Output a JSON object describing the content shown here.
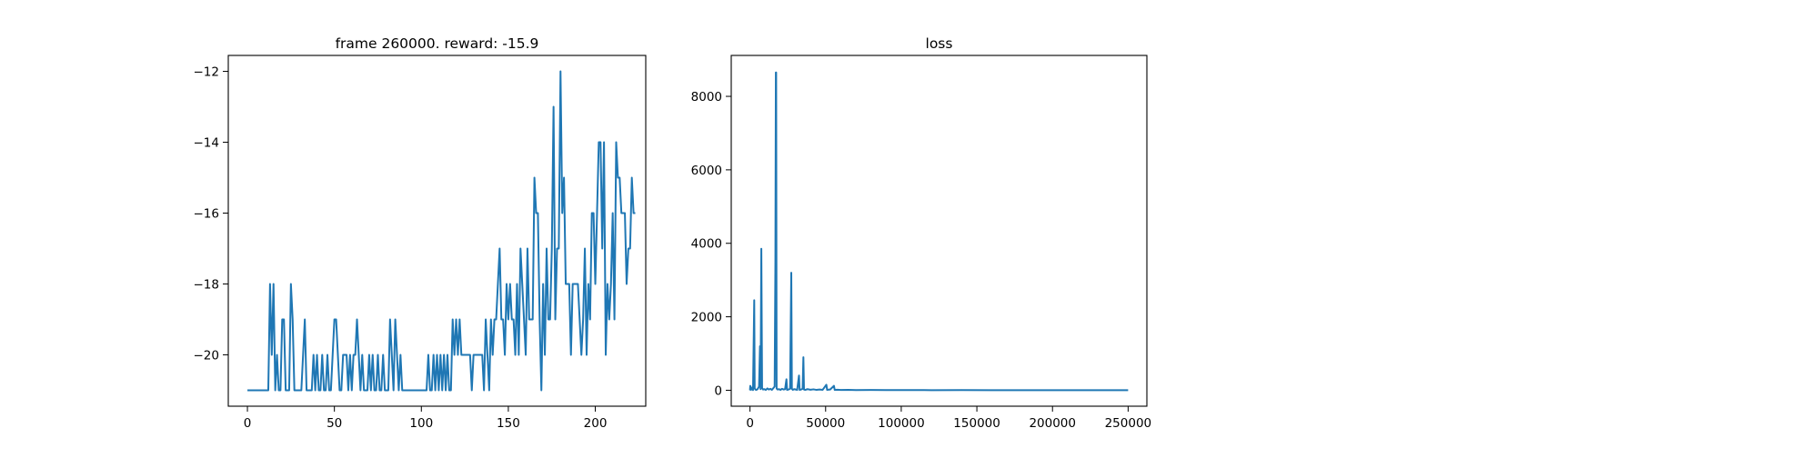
{
  "chart_data": [
    {
      "type": "line",
      "title": "frame 260000. reward: -15.9",
      "xlabel": "",
      "ylabel": "",
      "xlim": [
        -11,
        229
      ],
      "ylim": [
        -21.45,
        -11.55
      ],
      "xticks": [
        0,
        50,
        100,
        150,
        200
      ],
      "yticks": [
        -20,
        -18,
        -16,
        -14,
        -12
      ],
      "xtick_labels": [
        "0",
        "50",
        "100",
        "150",
        "200"
      ],
      "ytick_labels": [
        "−20",
        "−18",
        "−16",
        "−14",
        "−12"
      ],
      "grid": false,
      "color": "#1f77b4",
      "series": [
        {
          "x_start": 0,
          "values": [
            -21,
            -21,
            -21,
            -21,
            -21,
            -21,
            -21,
            -21,
            -21,
            -21,
            -21,
            -21,
            -21,
            -18,
            -20,
            -18,
            -21,
            -20,
            -21,
            -21,
            -19,
            -19,
            -21,
            -21,
            -21,
            -18,
            -19,
            -21,
            -21,
            -21,
            -21,
            -21,
            -20,
            -19,
            -21,
            -21,
            -21,
            -21,
            -20,
            -21,
            -20,
            -21,
            -21,
            -20,
            -21,
            -21,
            -20,
            -21,
            -21,
            -20,
            -19,
            -19,
            -20,
            -21,
            -21,
            -20,
            -20,
            -20,
            -21,
            -20,
            -21,
            -20,
            -20,
            -19,
            -20,
            -21,
            -20,
            -21,
            -21,
            -21,
            -20,
            -21,
            -20,
            -21,
            -21,
            -20,
            -21,
            -21,
            -20,
            -21,
            -21,
            -21,
            -19,
            -20,
            -21,
            -19,
            -20,
            -21,
            -20,
            -21,
            -21,
            -21,
            -21,
            -21,
            -21,
            -21,
            -21,
            -21,
            -21,
            -21,
            -21,
            -21,
            -21,
            -21,
            -20,
            -21,
            -21,
            -20,
            -21,
            -20,
            -21,
            -20,
            -21,
            -20,
            -21,
            -20,
            -21,
            -21,
            -19,
            -20,
            -19,
            -20,
            -19,
            -20,
            -20,
            -20,
            -20,
            -20,
            -20,
            -21,
            -20,
            -20,
            -20,
            -20,
            -20,
            -20,
            -21,
            -19,
            -20,
            -21,
            -19,
            -20,
            -19,
            -19,
            -18,
            -17,
            -19,
            -19,
            -20,
            -18,
            -19,
            -18,
            -19,
            -19,
            -20,
            -18,
            -20,
            -17,
            -18,
            -19,
            -20,
            -17,
            -19,
            -19,
            -19,
            -15,
            -16,
            -16,
            -19,
            -21,
            -18,
            -20,
            -17,
            -19,
            -19,
            -17,
            -13,
            -19,
            -17,
            -17,
            -12,
            -16,
            -15,
            -18,
            -18,
            -18,
            -20,
            -18,
            -18,
            -18,
            -18,
            -19,
            -20,
            -19,
            -17,
            -20,
            -18,
            -19,
            -16,
            -16,
            -18,
            -16,
            -14,
            -14,
            -17,
            -14,
            -20,
            -18,
            -19,
            -18,
            -16,
            -19,
            -14,
            -15,
            -15,
            -16,
            -16,
            -16,
            -18,
            -17,
            -17,
            -15,
            -16,
            -16
          ]
        }
      ]
    },
    {
      "type": "line",
      "title": "loss",
      "xlabel": "",
      "ylabel": "",
      "xlim": [
        -12400,
        262400
      ],
      "ylim": [
        -434,
        9114
      ],
      "xticks": [
        0,
        50000,
        100000,
        150000,
        200000,
        250000
      ],
      "yticks": [
        0,
        2000,
        4000,
        6000,
        8000
      ],
      "xtick_labels": [
        "0",
        "50000",
        "100000",
        "150000",
        "200000",
        "250000"
      ],
      "ytick_labels": [
        "0",
        "2000",
        "4000",
        "6000",
        "8000"
      ],
      "grid": false,
      "color": "#1f77b4",
      "series": [
        {
          "points": [
            [
              0,
              0
            ],
            [
              200,
              120
            ],
            [
              400,
              10
            ],
            [
              800,
              80
            ],
            [
              1200,
              20
            ],
            [
              1700,
              40
            ],
            [
              2000,
              5
            ],
            [
              2500,
              1500
            ],
            [
              2800,
              2450
            ],
            [
              3100,
              50
            ],
            [
              3600,
              20
            ],
            [
              4200,
              10
            ],
            [
              5000,
              30
            ],
            [
              6000,
              100
            ],
            [
              6600,
              1200
            ],
            [
              7000,
              30
            ],
            [
              7500,
              3850
            ],
            [
              8000,
              60
            ],
            [
              8600,
              20
            ],
            [
              9500,
              30
            ],
            [
              10500,
              10
            ],
            [
              11500,
              50
            ],
            [
              12500,
              20
            ],
            [
              13500,
              40
            ],
            [
              14500,
              10
            ],
            [
              15500,
              60
            ],
            [
              16300,
              100
            ],
            [
              16800,
              3500
            ],
            [
              17100,
              8650
            ],
            [
              17300,
              8650
            ],
            [
              17600,
              50
            ],
            [
              18200,
              20
            ],
            [
              19200,
              30
            ],
            [
              20200,
              10
            ],
            [
              21200,
              40
            ],
            [
              22200,
              20
            ],
            [
              23200,
              30
            ],
            [
              24100,
              300
            ],
            [
              24500,
              10
            ],
            [
              25500,
              20
            ],
            [
              26500,
              40
            ],
            [
              27300,
              3200
            ],
            [
              27700,
              40
            ],
            [
              28300,
              10
            ],
            [
              29200,
              30
            ],
            [
              30200,
              20
            ],
            [
              31200,
              10
            ],
            [
              32400,
              400
            ],
            [
              32800,
              10
            ],
            [
              33800,
              20
            ],
            [
              34800,
              40
            ],
            [
              35300,
              900
            ],
            [
              35700,
              20
            ],
            [
              36500,
              10
            ],
            [
              38000,
              30
            ],
            [
              40000,
              15
            ],
            [
              42000,
              25
            ],
            [
              44000,
              10
            ],
            [
              46000,
              20
            ],
            [
              48000,
              10
            ],
            [
              50500,
              150
            ],
            [
              51000,
              10
            ],
            [
              53000,
              20
            ],
            [
              55500,
              120
            ],
            [
              56000,
              10
            ],
            [
              58000,
              15
            ],
            [
              60000,
              8
            ],
            [
              65000,
              12
            ],
            [
              70000,
              5
            ],
            [
              80000,
              8
            ],
            [
              90000,
              4
            ],
            [
              100000,
              6
            ],
            [
              120000,
              3
            ],
            [
              140000,
              4
            ],
            [
              160000,
              2
            ],
            [
              180000,
              3
            ],
            [
              200000,
              2
            ],
            [
              220000,
              2
            ],
            [
              250000,
              2
            ]
          ]
        }
      ]
    }
  ]
}
